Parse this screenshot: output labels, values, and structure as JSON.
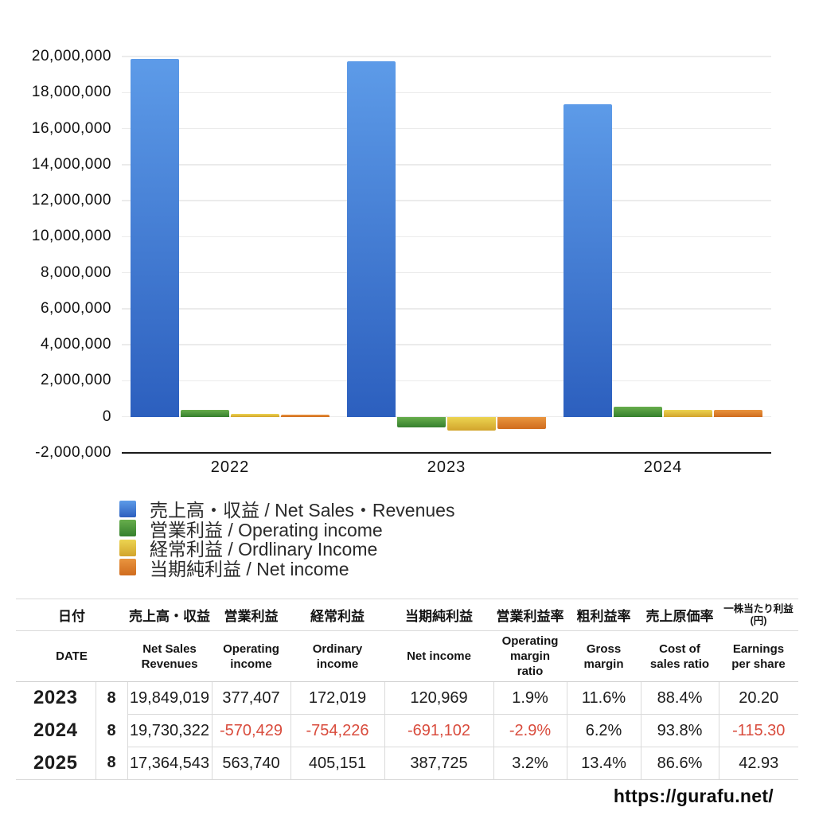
{
  "chart_data": {
    "type": "bar",
    "categories": [
      "2022",
      "2023",
      "2024"
    ],
    "series": [
      {
        "name": "売上高・収益 / Net Sales・Revenues",
        "values": [
          19849019,
          19730322,
          17364543
        ],
        "color_top": "#5d9be8",
        "color_bottom": "#2c5fbe"
      },
      {
        "name": "営業利益 / Operating income",
        "values": [
          377407,
          -570429,
          563740
        ],
        "color_top": "#67ad4c",
        "color_bottom": "#35802d"
      },
      {
        "name": "経常利益 / Ordlinary Income",
        "values": [
          172019,
          -754226,
          405151
        ],
        "color_top": "#ecd451",
        "color_bottom": "#d2a42c"
      },
      {
        "name": "当期純利益 / Net income",
        "values": [
          120969,
          -691102,
          387725
        ],
        "color_top": "#e9953f",
        "color_bottom": "#d06c1e"
      }
    ],
    "title": "",
    "xlabel": "",
    "ylabel": "",
    "ylim": [
      -2000000,
      20000000
    ],
    "ytick_step": 2000000,
    "grid": true,
    "legend_position": "bottom-left"
  },
  "table": {
    "header_jp": [
      "日付",
      "売上高・収益",
      "営業利益",
      "経常利益",
      "当期純利益",
      "営業利益率",
      "粗利益率",
      "売上原価率",
      "一株当たり利益\n(円)"
    ],
    "header_en": [
      "DATE",
      "Net Sales Revenues",
      "Operating income",
      "Ordinary income",
      "Net income",
      "Operating margin ratio",
      "Gross margin",
      "Cost of sales ratio",
      "Earnings per share"
    ],
    "rows": [
      {
        "year": "2023",
        "month": "8",
        "cells": [
          "19,849,019",
          "377,407",
          "172,019",
          "120,969",
          "1.9%",
          "11.6%",
          "88.4%",
          "20.20"
        ]
      },
      {
        "year": "2024",
        "month": "8",
        "cells": [
          "19,730,322",
          "-570,429",
          "-754,226",
          "-691,102",
          "-2.9%",
          "6.2%",
          "93.8%",
          "-115.30"
        ]
      },
      {
        "year": "2025",
        "month": "8",
        "cells": [
          "17,364,543",
          "563,740",
          "405,151",
          "387,725",
          "3.2%",
          "13.4%",
          "86.6%",
          "42.93"
        ]
      }
    ]
  },
  "footer": {
    "url": "https://gurafu.net/"
  },
  "colors": {
    "negative_text": "#d94c3d",
    "grid": "#ebebeb",
    "axis": "#1a1a1a",
    "table_border": "#dadada"
  }
}
